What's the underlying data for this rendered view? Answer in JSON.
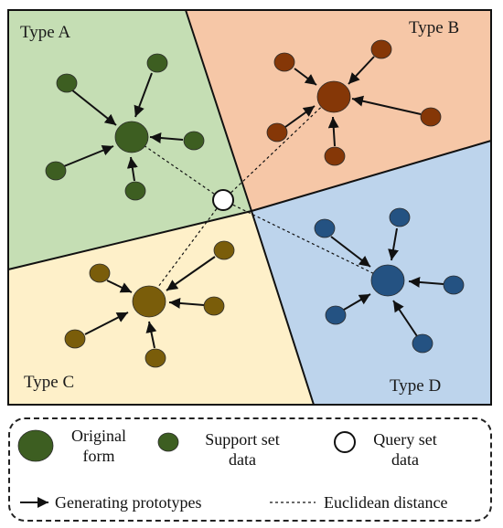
{
  "regions": {
    "a": {
      "label": "Type A",
      "fill": "#c5deb4"
    },
    "b": {
      "label": "Type B",
      "fill": "#f6c7a7"
    },
    "c": {
      "label": "Type C",
      "fill": "#fef0c9"
    },
    "d": {
      "label": "Type D",
      "fill": "#bdd4ec"
    }
  },
  "colors": {
    "type_a_node": "#3d5e21",
    "type_b_node": "#853707",
    "type_c_node": "#7a5d0a",
    "type_d_node": "#245282",
    "query_node": "#ffffff",
    "stroke": "#111111"
  },
  "legend": {
    "original_form": {
      "line1": "Original",
      "line2": "form"
    },
    "support_set": {
      "line1": "Support set",
      "line2": "data"
    },
    "query_set": {
      "line1": "Query set",
      "line2": "data"
    },
    "generating_prototypes": "Generating prototypes",
    "euclidean_distance": "Euclidean distance"
  }
}
